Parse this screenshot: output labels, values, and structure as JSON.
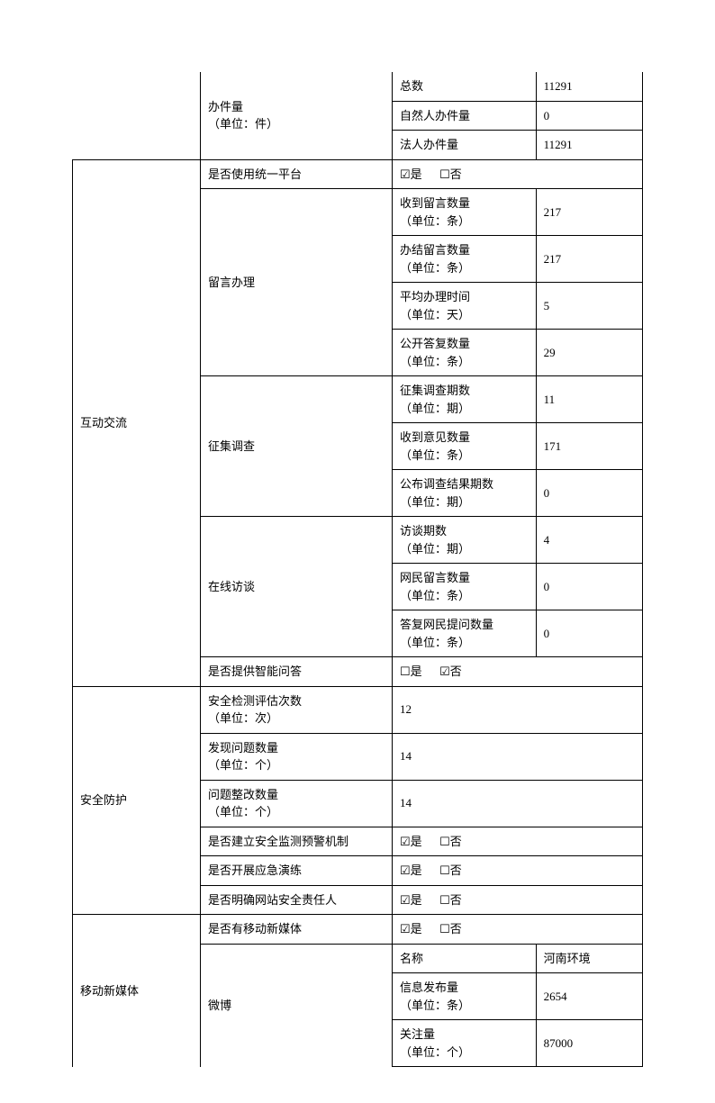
{
  "section1": {
    "category": "办件量\n（单位：件）",
    "rows": [
      {
        "label": "总数",
        "value": "11291"
      },
      {
        "label": "自然人办件量",
        "value": "0"
      },
      {
        "label": "法人办件量",
        "value": "11291"
      }
    ]
  },
  "section2": {
    "title": "互动交流",
    "unifiedPlatform": {
      "label": "是否使用统一平台",
      "yes": "☑是",
      "no": "☐否"
    },
    "messageHandling": {
      "title": "留言办理",
      "rows": [
        {
          "label": "收到留言数量\n（单位：条）",
          "value": "217"
        },
        {
          "label": "办结留言数量\n（单位：条）",
          "value": "217"
        },
        {
          "label": "平均办理时间\n（单位：天）",
          "value": "5"
        },
        {
          "label": "公开答复数量\n（单位：条）",
          "value": "29"
        }
      ]
    },
    "survey": {
      "title": "征集调查",
      "rows": [
        {
          "label": "征集调查期数\n（单位：期）",
          "value": "11"
        },
        {
          "label": "收到意见数量\n（单位：条）",
          "value": "171"
        },
        {
          "label": "公布调查结果期数\n（单位：期）",
          "value": "0"
        }
      ]
    },
    "interview": {
      "title": "在线访谈",
      "rows": [
        {
          "label": "访谈期数\n（单位：期）",
          "value": "4"
        },
        {
          "label": "网民留言数量\n（单位：条）",
          "value": "0"
        },
        {
          "label": "答复网民提问数量\n（单位：条）",
          "value": "0"
        }
      ]
    },
    "smartQA": {
      "label": "是否提供智能问答",
      "yes": "☐是",
      "no": "☑否"
    }
  },
  "section3": {
    "title": "安全防护",
    "rows": [
      {
        "label": "安全检测评估次数\n（单位：次）",
        "value": "12"
      },
      {
        "label": "发现问题数量\n（单位：个）",
        "value": "14"
      },
      {
        "label": "问题整改数量\n（单位：个）",
        "value": "14"
      }
    ],
    "monitoring": {
      "label": "是否建立安全监测预警机制",
      "yes": "☑是",
      "no": "☐否"
    },
    "drill": {
      "label": "是否开展应急演练",
      "yes": "☑是",
      "no": "☐否"
    },
    "responsible": {
      "label": "是否明确网站安全责任人",
      "yes": "☑是",
      "no": "☐否"
    }
  },
  "section4": {
    "title": "移动新媒体",
    "hasMedia": {
      "label": "是否有移动新媒体",
      "yes": "☑是",
      "no": "☐否"
    },
    "weibo": {
      "title": "微博",
      "rows": [
        {
          "label": "名称",
          "value": "河南环境"
        },
        {
          "label": "信息发布量\n（单位：条）",
          "value": "2654"
        },
        {
          "label": "关注量\n（单位：个）",
          "value": "87000"
        }
      ]
    }
  }
}
